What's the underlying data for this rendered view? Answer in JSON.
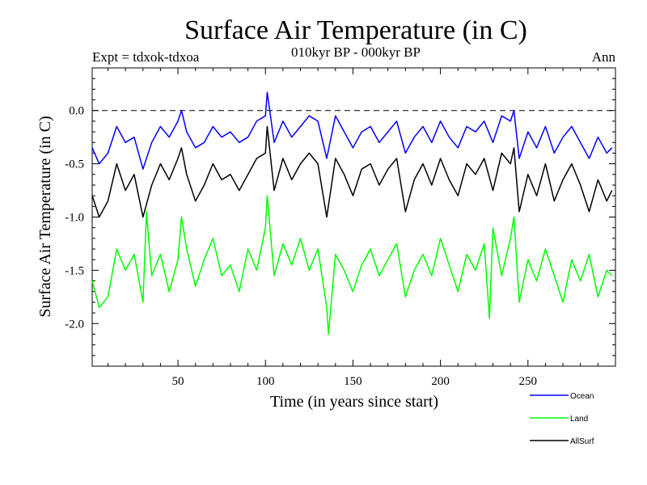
{
  "header": {
    "title": "Surface Air Temperature (in C)",
    "subtitle_left": "Expt = tdxok-tdxoa",
    "subtitle_center": "010kyr BP - 000kyr BP",
    "subtitle_right": "Ann"
  },
  "chart_data": {
    "type": "line",
    "title": "Surface Air Temperature (in C)",
    "xlabel": "Time (in years since start)",
    "ylabel": "Surface Air Temperature (in C)",
    "xlim": [
      1,
      300
    ],
    "ylim": [
      -2.4,
      0.4
    ],
    "x_ticks": [
      50,
      100,
      150,
      200,
      250
    ],
    "x_tick_labels": [
      "50",
      "100",
      "150",
      "200",
      "250"
    ],
    "y_ticks": [
      0.0,
      -0.5,
      -1.0,
      -1.5,
      -2.0
    ],
    "y_tick_labels": [
      "0.0",
      "-0.5",
      "-1.0",
      "-1.5",
      "-2.0"
    ],
    "reference_line": 0.0,
    "legend_position": "bottom-right",
    "series": [
      {
        "name": "Ocean",
        "color": "#0000ff",
        "x": [
          1,
          5,
          10,
          15,
          20,
          25,
          30,
          35,
          40,
          45,
          50,
          52,
          55,
          60,
          65,
          70,
          75,
          80,
          85,
          90,
          95,
          100,
          101,
          105,
          110,
          115,
          120,
          125,
          130,
          135,
          140,
          145,
          150,
          155,
          160,
          165,
          170,
          175,
          180,
          185,
          190,
          195,
          200,
          205,
          210,
          215,
          220,
          225,
          230,
          235,
          240,
          242,
          245,
          250,
          255,
          260,
          265,
          270,
          275,
          280,
          285,
          290,
          295,
          298
        ],
        "values": [
          -0.35,
          -0.5,
          -0.4,
          -0.15,
          -0.3,
          -0.25,
          -0.55,
          -0.3,
          -0.15,
          -0.25,
          -0.1,
          0.0,
          -0.2,
          -0.35,
          -0.3,
          -0.15,
          -0.25,
          -0.2,
          -0.3,
          -0.25,
          -0.1,
          -0.05,
          0.17,
          -0.3,
          -0.1,
          -0.25,
          -0.15,
          -0.05,
          -0.1,
          -0.45,
          -0.05,
          -0.2,
          -0.35,
          -0.2,
          -0.15,
          -0.3,
          -0.2,
          -0.1,
          -0.4,
          -0.25,
          -0.15,
          -0.3,
          -0.1,
          -0.25,
          -0.35,
          -0.15,
          -0.2,
          -0.1,
          -0.3,
          -0.05,
          -0.1,
          0.0,
          -0.45,
          -0.2,
          -0.35,
          -0.15,
          -0.4,
          -0.25,
          -0.15,
          -0.3,
          -0.45,
          -0.25,
          -0.4,
          -0.35
        ]
      },
      {
        "name": "Land",
        "color": "#00ff00",
        "x": [
          1,
          5,
          10,
          15,
          20,
          25,
          30,
          32,
          35,
          40,
          45,
          50,
          52,
          55,
          60,
          65,
          70,
          75,
          80,
          85,
          90,
          95,
          100,
          101,
          105,
          110,
          115,
          120,
          125,
          130,
          135,
          136,
          140,
          145,
          150,
          155,
          160,
          165,
          170,
          175,
          180,
          185,
          190,
          195,
          200,
          205,
          210,
          215,
          220,
          225,
          228,
          230,
          235,
          240,
          242,
          245,
          250,
          255,
          260,
          265,
          270,
          275,
          280,
          285,
          290,
          295,
          298
        ],
        "values": [
          -1.6,
          -1.85,
          -1.75,
          -1.3,
          -1.5,
          -1.35,
          -1.8,
          -0.95,
          -1.55,
          -1.35,
          -1.7,
          -1.4,
          -1.0,
          -1.3,
          -1.65,
          -1.4,
          -1.2,
          -1.55,
          -1.45,
          -1.7,
          -1.3,
          -1.5,
          -1.1,
          -0.8,
          -1.55,
          -1.25,
          -1.45,
          -1.2,
          -1.5,
          -1.3,
          -1.85,
          -2.1,
          -1.35,
          -1.5,
          -1.7,
          -1.45,
          -1.3,
          -1.55,
          -1.4,
          -1.25,
          -1.75,
          -1.5,
          -1.35,
          -1.55,
          -1.2,
          -1.45,
          -1.7,
          -1.35,
          -1.5,
          -1.25,
          -1.95,
          -1.1,
          -1.55,
          -1.2,
          -1.0,
          -1.8,
          -1.4,
          -1.6,
          -1.3,
          -1.55,
          -1.8,
          -1.4,
          -1.6,
          -1.35,
          -1.75,
          -1.5,
          -1.55
        ]
      },
      {
        "name": "AllSurf",
        "color": "#000000",
        "x": [
          1,
          5,
          10,
          15,
          20,
          25,
          30,
          35,
          40,
          45,
          50,
          52,
          55,
          60,
          65,
          70,
          75,
          80,
          85,
          90,
          95,
          100,
          101,
          105,
          110,
          115,
          120,
          125,
          130,
          135,
          140,
          145,
          150,
          155,
          160,
          165,
          170,
          175,
          180,
          185,
          190,
          195,
          200,
          205,
          210,
          215,
          220,
          225,
          230,
          235,
          240,
          242,
          245,
          250,
          255,
          260,
          265,
          270,
          275,
          280,
          285,
          290,
          295,
          298
        ],
        "values": [
          -0.8,
          -1.0,
          -0.85,
          -0.5,
          -0.75,
          -0.6,
          -1.0,
          -0.7,
          -0.5,
          -0.65,
          -0.45,
          -0.35,
          -0.6,
          -0.85,
          -0.7,
          -0.5,
          -0.65,
          -0.6,
          -0.75,
          -0.6,
          -0.45,
          -0.4,
          -0.15,
          -0.75,
          -0.45,
          -0.65,
          -0.5,
          -0.4,
          -0.5,
          -1.0,
          -0.45,
          -0.6,
          -0.8,
          -0.55,
          -0.5,
          -0.7,
          -0.55,
          -0.45,
          -0.95,
          -0.65,
          -0.5,
          -0.7,
          -0.45,
          -0.65,
          -0.8,
          -0.5,
          -0.6,
          -0.45,
          -0.75,
          -0.4,
          -0.5,
          -0.35,
          -0.95,
          -0.6,
          -0.8,
          -0.5,
          -0.85,
          -0.65,
          -0.5,
          -0.7,
          -0.95,
          -0.65,
          -0.85,
          -0.75
        ]
      }
    ]
  }
}
